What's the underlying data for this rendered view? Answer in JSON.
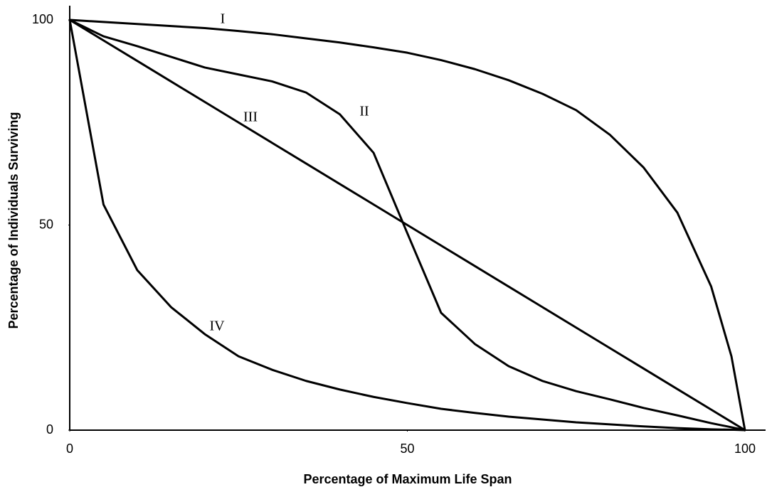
{
  "chart_data": {
    "type": "line",
    "x_label": "Percentage of Maximum Life Span",
    "y_label": "Percentage of Individuals Surviving",
    "x": [
      0,
      5,
      10,
      15,
      20,
      25,
      30,
      35,
      40,
      45,
      50,
      55,
      60,
      65,
      70,
      75,
      80,
      85,
      90,
      95,
      98,
      100
    ],
    "series": [
      {
        "name": "I",
        "color": "#000000",
        "values": [
          100,
          99.5,
          99,
          98.5,
          98,
          97.3,
          96.5,
          95.5,
          94.5,
          93.3,
          92,
          90.2,
          88,
          85.3,
          82,
          78,
          72,
          64,
          53,
          35,
          18,
          0
        ]
      },
      {
        "name": "II",
        "color": "#000000",
        "values": [
          100,
          96,
          93.6,
          91,
          88.4,
          86.7,
          85,
          82.3,
          77,
          67.6,
          48,
          28.6,
          21,
          15.6,
          12,
          9.5,
          7.5,
          5.4,
          3.6,
          1.7,
          0.7,
          0
        ]
      },
      {
        "name": "III",
        "color": "#000000",
        "values": [
          100,
          95,
          90,
          85,
          80,
          75,
          70,
          65,
          60,
          55,
          50,
          45,
          40,
          35,
          30,
          25,
          20,
          15,
          10,
          5,
          2,
          0
        ]
      },
      {
        "name": "IV",
        "color": "#000000",
        "values": [
          100,
          55,
          39,
          30,
          23.4,
          18,
          14.7,
          12,
          9.9,
          8.1,
          6.6,
          5.2,
          4.2,
          3.3,
          2.6,
          1.9,
          1.4,
          0.9,
          0.5,
          0.2,
          0.1,
          0
        ]
      }
    ],
    "xlim": [
      0,
      100
    ],
    "ylim": [
      0,
      100
    ],
    "xticks": [
      0,
      50,
      100
    ],
    "yticks": [
      0,
      50,
      100
    ],
    "grid": false
  }
}
